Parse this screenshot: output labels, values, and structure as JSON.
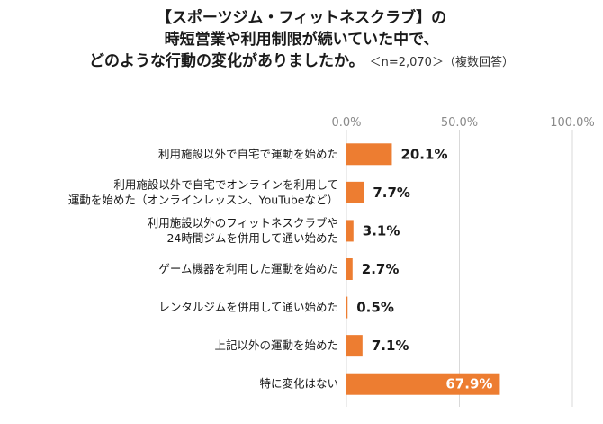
{
  "title": {
    "line1": "【スポーツジム・フィットネスクラブ】の",
    "line2": "時短営業や利用制限が続いていた中で、",
    "line3": "どのような行動の変化がありましたか。",
    "note": "＜n=2,070＞（複数回答）"
  },
  "colors": {
    "bar": "#ED7D31",
    "grid": "#d9d9d9",
    "value_inside": "#ffffff",
    "value_outside": "#1a1a1a"
  },
  "chart_data": {
    "type": "bar",
    "orientation": "horizontal",
    "categories": [
      [
        "利用施設以外で自宅で運動を始めた"
      ],
      [
        "利用施設以外で自宅でオンラインを利用して",
        "運動を始めた（オンラインレッスン、YouTubeなど）"
      ],
      [
        "利用施設以外のフィットネスクラブや",
        "24時間ジムを併用して通い始めた"
      ],
      [
        "ゲーム機器を利用した運動を始めた"
      ],
      [
        "レンタルジムを併用して通い始めた"
      ],
      [
        "上記以外の運動を始めた"
      ],
      [
        "特に変化はない"
      ]
    ],
    "values": [
      20.1,
      7.7,
      3.1,
      2.7,
      0.5,
      7.1,
      67.9
    ],
    "value_labels": [
      "20.1%",
      "7.7%",
      "3.1%",
      "2.7%",
      "0.5%",
      "7.1%",
      "67.9%"
    ],
    "xlim": [
      0,
      100
    ],
    "ticks": [
      0,
      50,
      100
    ],
    "tick_labels": [
      "0.0%",
      "50.0%",
      "100.0%"
    ],
    "unit": "%"
  }
}
